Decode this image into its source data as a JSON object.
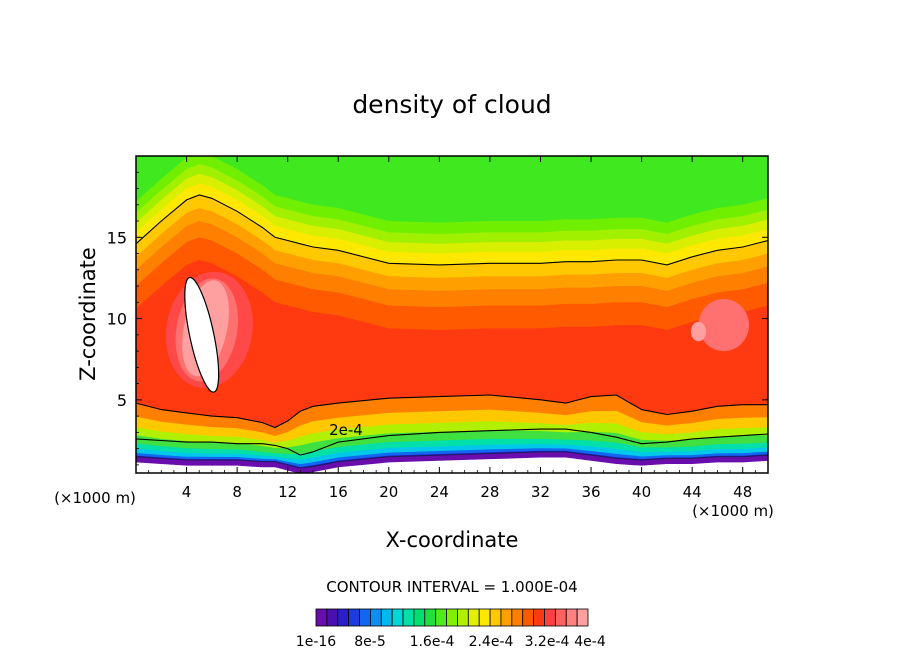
{
  "chart_data": {
    "type": "heatmap",
    "title": "density of cloud",
    "xlabel": "X-coordinate",
    "ylabel": "Z-coordinate",
    "x_unit_left": "(×1000 m)",
    "x_unit_right": "(×1000 m)",
    "xlim": [
      0,
      50
    ],
    "ylim": [
      0.5,
      20
    ],
    "xticks": [
      4,
      8,
      12,
      16,
      20,
      24,
      28,
      32,
      36,
      40,
      44,
      48
    ],
    "xtick_labels": [
      "4",
      "8",
      "12",
      "16",
      "20",
      "24",
      "28",
      "32",
      "36",
      "40",
      "44",
      "48"
    ],
    "yticks": [
      5,
      10,
      15
    ],
    "ytick_labels": [
      "5",
      "10",
      "15"
    ],
    "contour_interval_text": "CONTOUR INTERVAL = 1.000E-04",
    "contour_annotation": "2e-4",
    "colorbar": {
      "labels": [
        "1e-16",
        "8e-5",
        "1.6e-4",
        "2.4e-4",
        "3.2e-4",
        "4e-4"
      ],
      "colors": [
        "#6a0dad",
        "#4b0fb0",
        "#2a1fc8",
        "#1c3ce0",
        "#1366f0",
        "#0a90f5",
        "#00b8f0",
        "#00d8d8",
        "#00e0a8",
        "#00e070",
        "#20e040",
        "#50e820",
        "#80f000",
        "#b0f000",
        "#e0f000",
        "#ffe800",
        "#ffc800",
        "#ffa000",
        "#ff8000",
        "#ff5a00",
        "#ff3a10",
        "#ff4040",
        "#ff6060",
        "#ff8080",
        "#ffa0a0"
      ]
    },
    "profile_x": [
      0,
      2,
      4,
      5,
      6,
      8,
      10,
      11,
      12,
      13,
      14,
      16,
      20,
      24,
      28,
      32,
      34,
      36,
      38,
      40,
      42,
      44,
      46,
      48,
      50
    ],
    "profile_top": [
      14.6,
      16.0,
      17.3,
      17.6,
      17.4,
      16.6,
      15.6,
      15.0,
      14.8,
      14.6,
      14.4,
      14.2,
      13.4,
      13.3,
      13.4,
      13.4,
      13.5,
      13.5,
      13.6,
      13.6,
      13.3,
      13.8,
      14.2,
      14.4,
      14.8
    ],
    "profile_mid": [
      4.8,
      4.4,
      4.2,
      4.1,
      4.0,
      3.9,
      3.6,
      3.3,
      3.7,
      4.3,
      4.6,
      4.8,
      5.1,
      5.2,
      5.3,
      5.0,
      4.8,
      5.2,
      5.3,
      4.4,
      4.1,
      4.3,
      4.6,
      4.7,
      4.7
    ],
    "profile_2e4": [
      2.6,
      2.5,
      2.4,
      2.4,
      2.4,
      2.3,
      2.3,
      2.2,
      2.0,
      1.6,
      1.8,
      2.4,
      2.8,
      3.0,
      3.1,
      3.2,
      3.2,
      3.0,
      2.7,
      2.3,
      2.4,
      2.6,
      2.7,
      2.8,
      2.9
    ],
    "profile_base": [
      1.5,
      1.4,
      1.3,
      1.3,
      1.3,
      1.3,
      1.2,
      1.2,
      1.0,
      0.8,
      0.9,
      1.2,
      1.5,
      1.6,
      1.7,
      1.8,
      1.8,
      1.6,
      1.4,
      1.3,
      1.4,
      1.4,
      1.5,
      1.5,
      1.6
    ],
    "hole_center": [
      5.2,
      9.0
    ]
  }
}
